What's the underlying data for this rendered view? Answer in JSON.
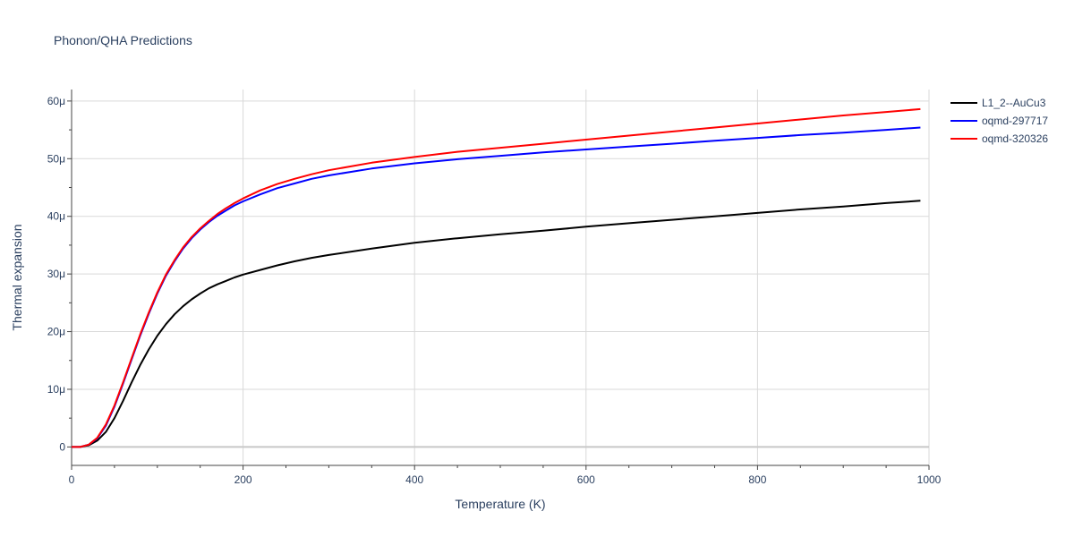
{
  "chart_data": {
    "type": "line",
    "title": "Phonon/QHA Predictions",
    "xlabel": "Temperature (K)",
    "ylabel": "Thermal expansion",
    "xlim": [
      0,
      1000
    ],
    "ylim": [
      -3.2e-06,
      6.2e-05
    ],
    "x_ticks": [
      0,
      200,
      400,
      600,
      800,
      1000
    ],
    "x_tick_labels": [
      "0",
      "200",
      "400",
      "600",
      "800",
      "1000"
    ],
    "y_ticks": [
      0,
      1e-05,
      2e-05,
      3e-05,
      4e-05,
      5e-05,
      6e-05
    ],
    "y_tick_labels": [
      "0",
      "10μ",
      "20μ",
      "30μ",
      "40μ",
      "50μ",
      "60μ"
    ],
    "grid": true,
    "legend_position": "top-right",
    "series": [
      {
        "name": "L1_2--AuCu3",
        "color": "#000000",
        "x": [
          0,
          10,
          20,
          30,
          40,
          50,
          60,
          70,
          80,
          90,
          100,
          110,
          120,
          130,
          140,
          150,
          160,
          170,
          180,
          190,
          200,
          220,
          240,
          260,
          280,
          300,
          350,
          400,
          450,
          500,
          550,
          600,
          650,
          700,
          750,
          800,
          850,
          900,
          950,
          990
        ],
        "values": [
          0,
          0,
          3e-07,
          1.1e-06,
          2.6e-06,
          5e-06,
          8e-06,
          1.12e-05,
          1.42e-05,
          1.69e-05,
          1.93e-05,
          2.13e-05,
          2.3e-05,
          2.44e-05,
          2.56e-05,
          2.66e-05,
          2.75e-05,
          2.82e-05,
          2.88e-05,
          2.94e-05,
          2.99e-05,
          3.07e-05,
          3.15e-05,
          3.22e-05,
          3.28e-05,
          3.33e-05,
          3.44e-05,
          3.54e-05,
          3.62e-05,
          3.69e-05,
          3.75e-05,
          3.82e-05,
          3.88e-05,
          3.94e-05,
          4e-05,
          4.06e-05,
          4.12e-05,
          4.17e-05,
          4.23e-05,
          4.27e-05
        ]
      },
      {
        "name": "oqmd-297717",
        "color": "#0000ff",
        "x": [
          0,
          10,
          20,
          30,
          40,
          50,
          60,
          70,
          80,
          90,
          100,
          110,
          120,
          130,
          140,
          150,
          160,
          170,
          180,
          190,
          200,
          220,
          240,
          260,
          280,
          300,
          350,
          400,
          450,
          500,
          550,
          600,
          650,
          700,
          750,
          800,
          850,
          900,
          950,
          990
        ],
        "values": [
          0,
          0,
          4e-07,
          1.5e-06,
          3.7e-06,
          7e-06,
          1.1e-05,
          1.52e-05,
          1.93e-05,
          2.31e-05,
          2.66e-05,
          2.97e-05,
          3.22e-05,
          3.44e-05,
          3.62e-05,
          3.77e-05,
          3.9e-05,
          4.01e-05,
          4.1e-05,
          4.19e-05,
          4.26e-05,
          4.38e-05,
          4.49e-05,
          4.57e-05,
          4.65e-05,
          4.71e-05,
          4.83e-05,
          4.92e-05,
          4.99e-05,
          5.05e-05,
          5.11e-05,
          5.16e-05,
          5.21e-05,
          5.26e-05,
          5.31e-05,
          5.36e-05,
          5.41e-05,
          5.45e-05,
          5.5e-05,
          5.54e-05
        ]
      },
      {
        "name": "oqmd-320326",
        "color": "#ff0000",
        "x": [
          0,
          10,
          20,
          30,
          40,
          50,
          60,
          70,
          80,
          90,
          100,
          110,
          120,
          130,
          140,
          150,
          160,
          170,
          180,
          190,
          200,
          220,
          240,
          260,
          280,
          300,
          350,
          400,
          450,
          500,
          550,
          600,
          650,
          700,
          750,
          800,
          850,
          900,
          950,
          990
        ],
        "values": [
          0,
          0,
          4e-07,
          1.6e-06,
          3.9e-06,
          7.2e-06,
          1.12e-05,
          1.54e-05,
          1.95e-05,
          2.33e-05,
          2.68e-05,
          2.99e-05,
          3.24e-05,
          3.46e-05,
          3.64e-05,
          3.79e-05,
          3.92e-05,
          4.04e-05,
          4.14e-05,
          4.23e-05,
          4.31e-05,
          4.45e-05,
          4.56e-05,
          4.65e-05,
          4.73e-05,
          4.8e-05,
          4.93e-05,
          5.03e-05,
          5.12e-05,
          5.19e-05,
          5.26e-05,
          5.33e-05,
          5.4e-05,
          5.47e-05,
          5.54e-05,
          5.61e-05,
          5.68e-05,
          5.75e-05,
          5.81e-05,
          5.86e-05
        ]
      }
    ]
  }
}
